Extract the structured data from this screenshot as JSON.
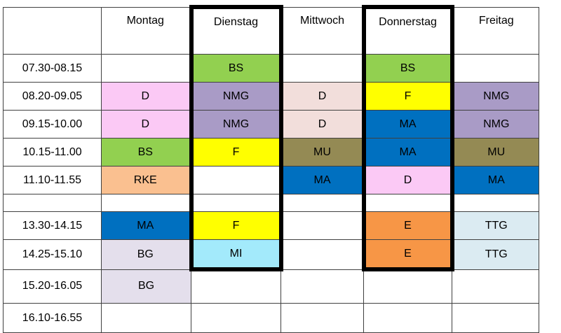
{
  "timetable": {
    "corner_label": "",
    "days": [
      "Montag",
      "Dienstag",
      "Mittwoch",
      "Donnerstag",
      "Freitag"
    ],
    "highlighted_days": [
      "Dienstag",
      "Donnerstag"
    ],
    "highlight_through_time": "14.25-15.10",
    "palette": {
      "green": "#92D050",
      "pink": "#FBC9F5",
      "pale_rose": "#F2DEDB",
      "purple": "#A99BC6",
      "yellow": "#FFFF00",
      "blue": "#0070C0",
      "olive": "#948A54",
      "peach": "#FAC090",
      "orange": "#F79646",
      "lavender": "#E4DFEC",
      "cyan": "#A3EAFB",
      "pale_blue": "#DBEBF2",
      "highlight_border": "#000000",
      "grid_border": "#404040"
    },
    "rows": [
      {
        "time": "07.30-08.15",
        "cells": [
          null,
          {
            "s": "BS",
            "c": "green"
          },
          null,
          {
            "s": "BS",
            "c": "green"
          },
          null
        ]
      },
      {
        "time": "08.20-09.05",
        "cells": [
          {
            "s": "D",
            "c": "pink"
          },
          {
            "s": "NMG",
            "c": "purple"
          },
          {
            "s": "D",
            "c": "pale_rose"
          },
          {
            "s": "F",
            "c": "yellow"
          },
          {
            "s": "NMG",
            "c": "purple"
          }
        ]
      },
      {
        "time": "09.15-10.00",
        "cells": [
          {
            "s": "D",
            "c": "pink"
          },
          {
            "s": "NMG",
            "c": "purple"
          },
          {
            "s": "D",
            "c": "pale_rose"
          },
          {
            "s": "MA",
            "c": "blue"
          },
          {
            "s": "NMG",
            "c": "purple"
          }
        ]
      },
      {
        "time": "10.15-11.00",
        "cells": [
          {
            "s": "BS",
            "c": "green"
          },
          {
            "s": "F",
            "c": "yellow"
          },
          {
            "s": "MU",
            "c": "olive"
          },
          {
            "s": "MA",
            "c": "blue"
          },
          {
            "s": "MU",
            "c": "olive"
          }
        ]
      },
      {
        "time": "11.10-11.55",
        "cells": [
          {
            "s": "RKE",
            "c": "peach"
          },
          null,
          {
            "s": "MA",
            "c": "blue"
          },
          {
            "s": "D",
            "c": "pink"
          },
          {
            "s": "MA",
            "c": "blue"
          }
        ]
      },
      {
        "time": "",
        "break": true,
        "cells": [
          null,
          null,
          null,
          null,
          null
        ]
      },
      {
        "time": "13.30-14.15",
        "cells": [
          {
            "s": "MA",
            "c": "blue"
          },
          {
            "s": "F",
            "c": "yellow"
          },
          null,
          {
            "s": "E",
            "c": "orange"
          },
          {
            "s": "TTG",
            "c": "pale_blue"
          }
        ]
      },
      {
        "time": "14.25-15.10",
        "cells": [
          {
            "s": "BG",
            "c": "lavender"
          },
          {
            "s": "MI",
            "c": "cyan"
          },
          null,
          {
            "s": "E",
            "c": "orange"
          },
          {
            "s": "TTG",
            "c": "pale_blue"
          }
        ]
      },
      {
        "time": "15.20-16.05",
        "cells": [
          {
            "s": "BG",
            "c": "lavender"
          },
          null,
          null,
          null,
          null
        ]
      },
      {
        "time": "16.10-16.55",
        "cells": [
          null,
          null,
          null,
          null,
          null
        ]
      }
    ]
  }
}
